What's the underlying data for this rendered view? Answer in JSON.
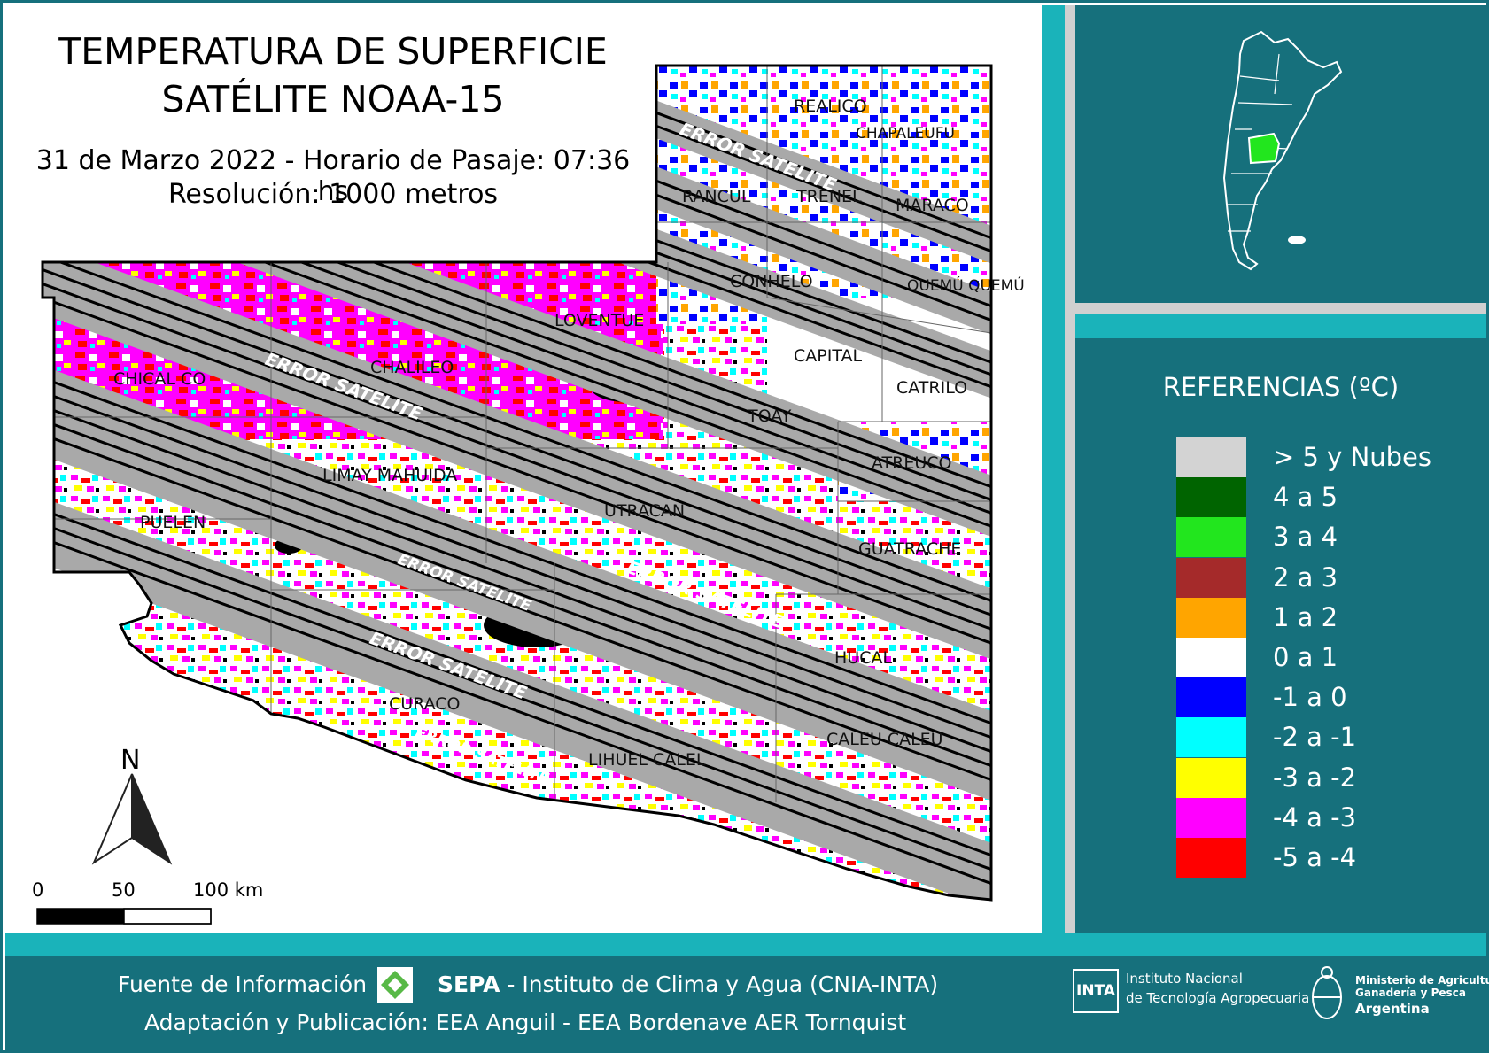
{
  "map": {
    "title_line1": "TEMPERATURA DE SUPERFICIE",
    "title_line2": "SATÉLITE NOAA-15",
    "date_line": "31 de Marzo 2022 - Horario de Pasaje: 07:36 hs",
    "resolution_line": "Resolución: 1000 metros",
    "north_label": "N",
    "scale_labels": [
      "0",
      "50",
      "100 km"
    ],
    "swath_error_label": "ERROR SATELITE",
    "departments": [
      "RANCUL",
      "TRENEL",
      "MARACO",
      "CONHELO",
      "QUEMÚ QUEMÚ",
      "LOVENTUE",
      "CAPITAL",
      "CATRILO",
      "CHICAL CO",
      "CHALILEO",
      "TOAY",
      "ATREUCO",
      "LIMAY MAHUIDA",
      "UTRACAN",
      "PUELEN",
      "GUATRACHE",
      "HUCAL",
      "CURACO",
      "LIHUEL CALEL",
      "CALEU CALEU",
      "REALICO",
      "CHAPALEUFU"
    ]
  },
  "legend": {
    "title": "REFERENCIAS (ºC)",
    "items": [
      {
        "label": "> 5 y Nubes",
        "color": "#d3d3d3"
      },
      {
        "label": "4 a 5",
        "color": "#006400"
      },
      {
        "label": "3 a 4",
        "color": "#22e61e"
      },
      {
        "label": "2 a 3",
        "color": "#a52a2a"
      },
      {
        "label": "1 a 2",
        "color": "#ffa500"
      },
      {
        "label": "0 a 1",
        "color": "#ffffff"
      },
      {
        "label": "-1 a 0",
        "color": "#0000ff"
      },
      {
        "label": "-2 a -1",
        "color": "#00ffff"
      },
      {
        "label": "-3 a -2",
        "color": "#ffff00"
      },
      {
        "label": "-4 a -3",
        "color": "#ff00ff"
      },
      {
        "label": "-5 a -4",
        "color": "#ff0000"
      }
    ]
  },
  "footer": {
    "source_prefix": "Fuente de Información",
    "source_brand": "SEPA",
    "source_suffix": " - Instituto de Clima y Agua (CNIA-INTA)",
    "publication": "Adaptación y Publicación: EEA Anguil - EEA Bordenave AER Tornquist",
    "inta_logo_text": "INTA",
    "inta_name_line1": "Instituto Nacional",
    "inta_name_line2": "de Tecnología Agropecuaria",
    "ministry_line1": "Ministerio de Agricultura,",
    "ministry_line2": "Ganadería y Pesca",
    "ministry_line3": "Argentina"
  },
  "colors": {
    "panel_teal": "#16707c",
    "accent_cyan": "#1ab3ba",
    "swath_grey": "#a9a9a9",
    "highlight_province": "#22e61e"
  },
  "icons": {
    "north_arrow": "north-arrow-icon",
    "sepa_logo": "sepa-logo-icon",
    "inta_logo": "inta-logo-icon",
    "ministry_emblem": "ministry-emblem-icon"
  }
}
